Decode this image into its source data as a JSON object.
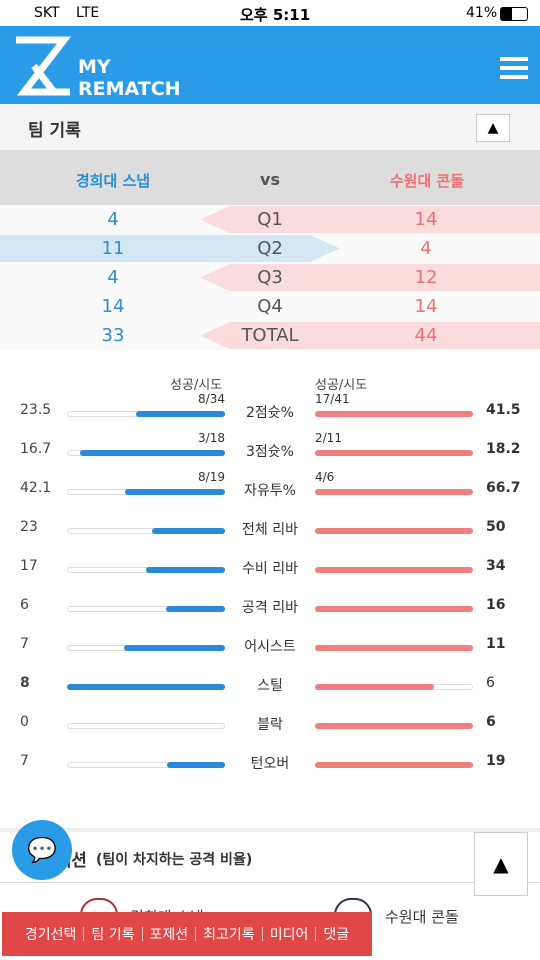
{
  "status_bar": {
    "carrier": "SKT",
    "network": "LTE",
    "time": "오후 5:11",
    "battery": "41%"
  },
  "header": {
    "logo_top": "MY",
    "logo_bottom": "REMATCH"
  },
  "section_title": "팀 기록",
  "teams": {
    "home": "경희대 스냅",
    "vs": "vs",
    "away": "수원대 콘돌"
  },
  "quarters": [
    {
      "label": "Q1",
      "home": 4,
      "away": 14
    },
    {
      "label": "Q2",
      "home": 11,
      "away": 4
    },
    {
      "label": "Q3",
      "home": 4,
      "away": 12
    },
    {
      "label": "Q4",
      "home": 14,
      "away": 14
    },
    {
      "label": "TOTAL",
      "home": 33,
      "away": 44
    }
  ],
  "stats": {
    "attempt_header_home": "성공/시도",
    "attempt_header_away": "성공/시도",
    "rows": [
      {
        "label": "2점슛%",
        "home": 23.5,
        "away": 41.5,
        "home_attempt": "8/34",
        "away_attempt": "17/41"
      },
      {
        "label": "3점슛%",
        "home": 16.7,
        "away": 18.2,
        "home_attempt": "3/18",
        "away_attempt": "2/11"
      },
      {
        "label": "자유투%",
        "home": 42.1,
        "away": 66.7,
        "home_attempt": "8/19",
        "away_attempt": "4/6"
      },
      {
        "label": "전체 리바",
        "home": 23,
        "away": 50
      },
      {
        "label": "수비 리바",
        "home": 17,
        "away": 34
      },
      {
        "label": "공격 리바",
        "home": 6,
        "away": 16
      },
      {
        "label": "어시스트",
        "home": 7,
        "away": 11
      },
      {
        "label": "스틸",
        "home": 8,
        "away": 6
      },
      {
        "label": "블락",
        "home": 0,
        "away": 6
      },
      {
        "label": "턴오버",
        "home": 7,
        "away": 19
      }
    ]
  },
  "possession": {
    "title": "포제션",
    "subtitle": "(팀이 차지하는 공격 비율)",
    "home": "경희대 스냅",
    "away": "수원대 콘돌"
  },
  "bottom_nav": [
    "경기선택",
    "팀 기록",
    "포제션",
    "최고기록",
    "미디어",
    "댓글"
  ]
}
